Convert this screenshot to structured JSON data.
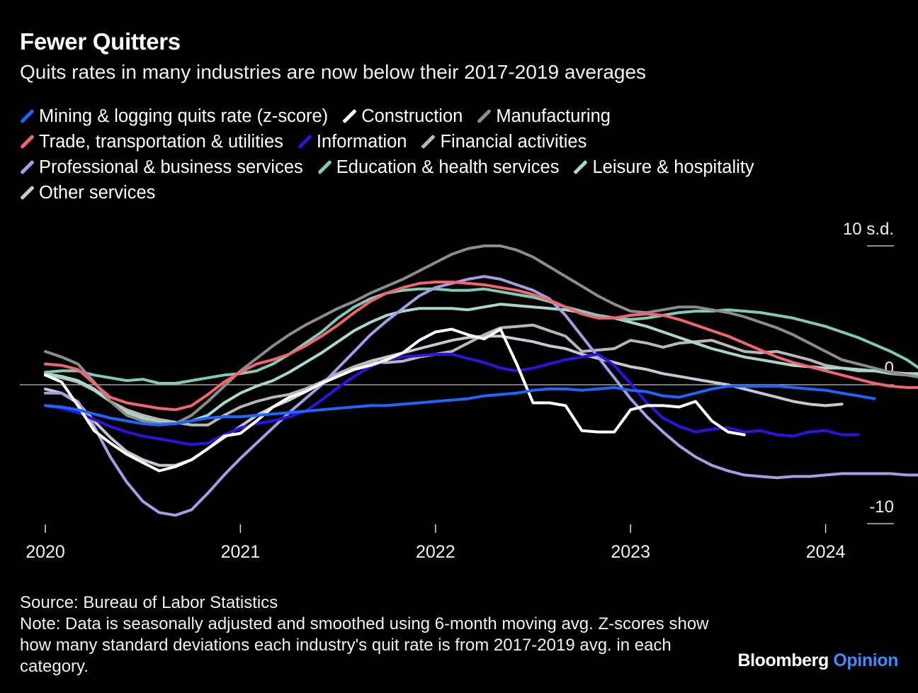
{
  "header": {
    "title": "Fewer Quitters",
    "subtitle": "Quits rates in many industries are now below their 2017-2019 averages"
  },
  "footer": {
    "source": "Source: Bureau of Labor Statistics",
    "note": "Note: Data is seasonally adjusted and smoothed using 6-month moving avg. Z-scores show how many standard deviations each industry's quit rate is from 2017-2019 avg. in each category.",
    "brand_main": "Bloomberg",
    "brand_accent": "Opinion"
  },
  "chart_data": {
    "type": "line",
    "x_start": "2020-01",
    "x_ticks": [
      "2020",
      "2021",
      "2022",
      "2023",
      "2024"
    ],
    "ylim": [
      -10,
      10
    ],
    "y_ticks": [
      {
        "value": 10,
        "label": "10 s.d."
      },
      {
        "value": 0,
        "label": "0"
      },
      {
        "value": -10,
        "label": "-10"
      }
    ],
    "series": [
      {
        "name": "Other services",
        "color": "#c8c8d4",
        "values": [
          -0.3,
          -0.6,
          -1.3,
          -2.6,
          -3.8,
          -4.8,
          -5.4,
          -5.8,
          -5.8,
          -5.4,
          -4.6,
          -3.8,
          -3.0,
          -2.2,
          -1.6,
          -1.1,
          -0.5,
          0.2,
          0.8,
          1.3,
          1.7,
          2.0,
          2.3,
          2.6,
          2.9,
          3.2,
          3.4,
          3.5,
          3.5,
          3.3,
          3.1,
          2.8,
          2.6,
          2.2,
          1.9,
          1.6,
          1.3,
          1.1,
          0.8,
          0.6,
          0.4,
          0.2,
          0.0,
          -0.3,
          -0.6,
          -0.9,
          -1.2,
          -1.4,
          -1.5,
          -1.4
        ]
      },
      {
        "name": "Financial activities",
        "color": "#b8b8b8",
        "values": [
          0.7,
          0.5,
          0.2,
          -0.4,
          -1.2,
          -1.8,
          -2.2,
          -2.5,
          -2.7,
          -2.9,
          -2.9,
          -2.2,
          -1.6,
          -1.2,
          -0.9,
          -0.7,
          -0.3,
          0.2,
          0.8,
          1.3,
          1.6,
          1.6,
          1.7,
          2.0,
          2.2,
          2.4,
          3.0,
          3.6,
          4.1,
          4.2,
          4.3,
          3.9,
          3.5,
          2.4,
          2.5,
          2.6,
          3.2,
          3.0,
          2.7,
          3.0,
          3.1,
          3.2,
          2.8,
          2.4,
          2.3,
          2.4,
          2.1,
          1.8,
          1.4,
          1.2,
          1.0,
          1.0,
          0.8,
          0.7,
          0.6,
          0.5,
          0.5,
          0.5
        ]
      },
      {
        "name": "Leisure & hospitality",
        "color": "#a8d8cc",
        "values": [
          0.8,
          0.6,
          0.3,
          -0.3,
          -1.2,
          -2.0,
          -2.4,
          -2.7,
          -2.8,
          -2.6,
          -2.2,
          -1.3,
          -0.6,
          -0.1,
          0.3,
          0.9,
          1.6,
          2.3,
          3.1,
          3.9,
          4.5,
          5.0,
          5.3,
          5.5,
          5.5,
          5.5,
          5.4,
          5.6,
          5.8,
          5.7,
          5.6,
          5.5,
          5.4,
          5.2,
          5.0,
          4.8,
          4.5,
          4.2,
          3.8,
          3.4,
          3.0,
          2.6,
          2.3,
          2.0,
          1.8,
          1.6,
          1.4,
          1.3,
          1.2,
          1.2,
          1.1,
          1.0,
          0.9,
          0.8,
          0.8,
          0.7,
          0.7,
          0.6
        ]
      },
      {
        "name": "Education & health services",
        "color": "#82c9b7",
        "values": [
          0.9,
          1.0,
          1.0,
          0.7,
          0.5,
          0.3,
          0.4,
          0.1,
          0.1,
          0.3,
          0.5,
          0.7,
          0.8,
          1.0,
          1.5,
          2.2,
          3.0,
          3.8,
          4.8,
          5.6,
          6.2,
          6.6,
          6.8,
          6.9,
          6.9,
          6.8,
          6.8,
          6.9,
          6.7,
          6.5,
          6.3,
          6.0,
          5.6,
          5.3,
          5.0,
          4.8,
          4.7,
          4.8,
          5.0,
          5.2,
          5.3,
          5.3,
          5.4,
          5.3,
          5.2,
          5.0,
          4.8,
          4.5,
          4.2,
          3.8,
          3.4,
          2.9,
          2.4,
          1.8,
          1.0,
          0.2,
          -0.2,
          0.0
        ]
      },
      {
        "name": "Manufacturing",
        "color": "#8c8c8c",
        "values": [
          2.4,
          2.0,
          1.5,
          0.2,
          -1.2,
          -2.2,
          -2.6,
          -2.8,
          -2.8,
          -2.2,
          -1.2,
          -0.1,
          1.0,
          1.9,
          2.8,
          3.6,
          4.3,
          4.9,
          5.5,
          6.0,
          6.6,
          7.1,
          7.6,
          8.2,
          8.8,
          9.4,
          9.8,
          10.0,
          10.0,
          9.7,
          9.2,
          8.5,
          7.8,
          7.1,
          6.4,
          5.8,
          5.3,
          5.2,
          5.4,
          5.6,
          5.6,
          5.4,
          5.2,
          4.9,
          4.5,
          4.1,
          3.6,
          3.0,
          2.4,
          1.8,
          1.5,
          1.2,
          0.9,
          0.7,
          0.5,
          0.4,
          0.4,
          0.4
        ]
      },
      {
        "name": "Professional & business services",
        "color": "#a49ee3",
        "values": [
          -0.6,
          -0.6,
          -1.2,
          -3.0,
          -5.2,
          -7.0,
          -8.4,
          -9.2,
          -9.4,
          -9.0,
          -7.8,
          -6.5,
          -5.3,
          -4.2,
          -3.1,
          -2.0,
          -1.0,
          0.0,
          1.2,
          2.4,
          3.6,
          4.6,
          5.5,
          6.4,
          7.0,
          7.3,
          7.6,
          7.8,
          7.6,
          7.2,
          6.8,
          6.2,
          5.0,
          3.5,
          2.0,
          0.5,
          -1.0,
          -2.3,
          -3.4,
          -4.4,
          -5.2,
          -5.8,
          -6.2,
          -6.5,
          -6.6,
          -6.7,
          -6.6,
          -6.6,
          -6.5,
          -6.4,
          -6.4,
          -6.4,
          -6.4,
          -6.5,
          -6.5,
          -6.6,
          -6.6,
          -6.7
        ]
      },
      {
        "name": "Trade, transportation & utilities",
        "color": "#f2656b",
        "values": [
          1.5,
          1.4,
          1.1,
          0.1,
          -0.9,
          -1.3,
          -1.5,
          -1.7,
          -1.8,
          -1.5,
          -0.7,
          0.2,
          0.9,
          1.5,
          1.8,
          2.2,
          2.8,
          3.5,
          4.3,
          5.2,
          6.0,
          6.6,
          7.0,
          7.3,
          7.4,
          7.4,
          7.3,
          7.2,
          7.0,
          6.8,
          6.5,
          6.1,
          5.6,
          5.1,
          4.8,
          4.8,
          5.0,
          5.1,
          5.0,
          4.7,
          4.3,
          3.9,
          3.5,
          3.0,
          2.5,
          2.0,
          1.6,
          1.3,
          1.0,
          0.7,
          0.4,
          0.1,
          -0.1,
          -0.2,
          -0.2,
          -0.2,
          -0.2,
          -0.2
        ]
      },
      {
        "name": "Information",
        "color": "#2b13e0",
        "values": [
          -1.5,
          -1.7,
          -2.0,
          -2.5,
          -3.0,
          -3.4,
          -3.7,
          -3.9,
          -4.1,
          -4.3,
          -4.2,
          -3.6,
          -3.1,
          -2.8,
          -2.6,
          -2.3,
          -1.9,
          -1.1,
          -0.2,
          0.6,
          1.3,
          1.8,
          2.0,
          2.1,
          2.2,
          2.2,
          1.9,
          1.6,
          1.2,
          1.0,
          1.2,
          1.5,
          1.8,
          2.0,
          2.2,
          1.4,
          0.1,
          -1.3,
          -2.4,
          -3.0,
          -3.4,
          -3.2,
          -3.1,
          -3.4,
          -3.3,
          -3.6,
          -3.7,
          -3.4,
          -3.3,
          -3.6,
          -3.6
        ]
      },
      {
        "name": "Construction",
        "color": "#ffffff",
        "values": [
          0.7,
          0.2,
          -1.5,
          -3.3,
          -4.2,
          -5.0,
          -5.6,
          -6.2,
          -5.9,
          -5.4,
          -4.6,
          -3.7,
          -3.5,
          -2.6,
          -1.6,
          -0.9,
          -0.5,
          0.1,
          0.6,
          1.1,
          1.4,
          1.8,
          2.3,
          3.2,
          3.8,
          4.0,
          3.6,
          3.3,
          4.0,
          1.5,
          -1.3,
          -1.3,
          -1.5,
          -3.3,
          -3.4,
          -3.4,
          -1.8,
          -1.5,
          -1.5,
          -1.6,
          -1.2,
          -2.6,
          -3.4,
          -3.6
        ]
      },
      {
        "name": "Mining & logging quits rate (z-score)",
        "color": "#1e64ff",
        "values": [
          -1.5,
          -1.6,
          -1.8,
          -2.1,
          -2.4,
          -2.6,
          -2.8,
          -2.9,
          -2.8,
          -2.6,
          -2.4,
          -2.3,
          -2.3,
          -2.2,
          -2.1,
          -2.0,
          -1.9,
          -1.8,
          -1.7,
          -1.6,
          -1.5,
          -1.5,
          -1.4,
          -1.3,
          -1.2,
          -1.1,
          -1.0,
          -0.8,
          -0.7,
          -0.6,
          -0.4,
          -0.3,
          -0.3,
          -0.4,
          -0.3,
          -0.2,
          -0.4,
          -0.5,
          -0.8,
          -0.9,
          -0.6,
          -0.3,
          -0.1,
          -0.1,
          -0.1,
          -0.1,
          -0.2,
          -0.3,
          -0.4,
          -0.6,
          -0.8,
          -1.0
        ]
      }
    ],
    "legend": [
      {
        "name": "Mining & logging quits rate (z-score)",
        "color": "#1e64ff"
      },
      {
        "name": "Construction",
        "color": "#ffffff"
      },
      {
        "name": "Manufacturing",
        "color": "#8c8c8c"
      },
      {
        "name": "Trade, transportation & utilities",
        "color": "#f2656b"
      },
      {
        "name": "Information",
        "color": "#2b13e0"
      },
      {
        "name": "Financial activities",
        "color": "#b8b8b8"
      },
      {
        "name": "Professional & business services",
        "color": "#a49ee3"
      },
      {
        "name": "Education & health services",
        "color": "#82c9b7"
      },
      {
        "name": "Leisure & hospitality",
        "color": "#a8d8cc"
      },
      {
        "name": "Other services",
        "color": "#c8c8d4"
      }
    ]
  }
}
